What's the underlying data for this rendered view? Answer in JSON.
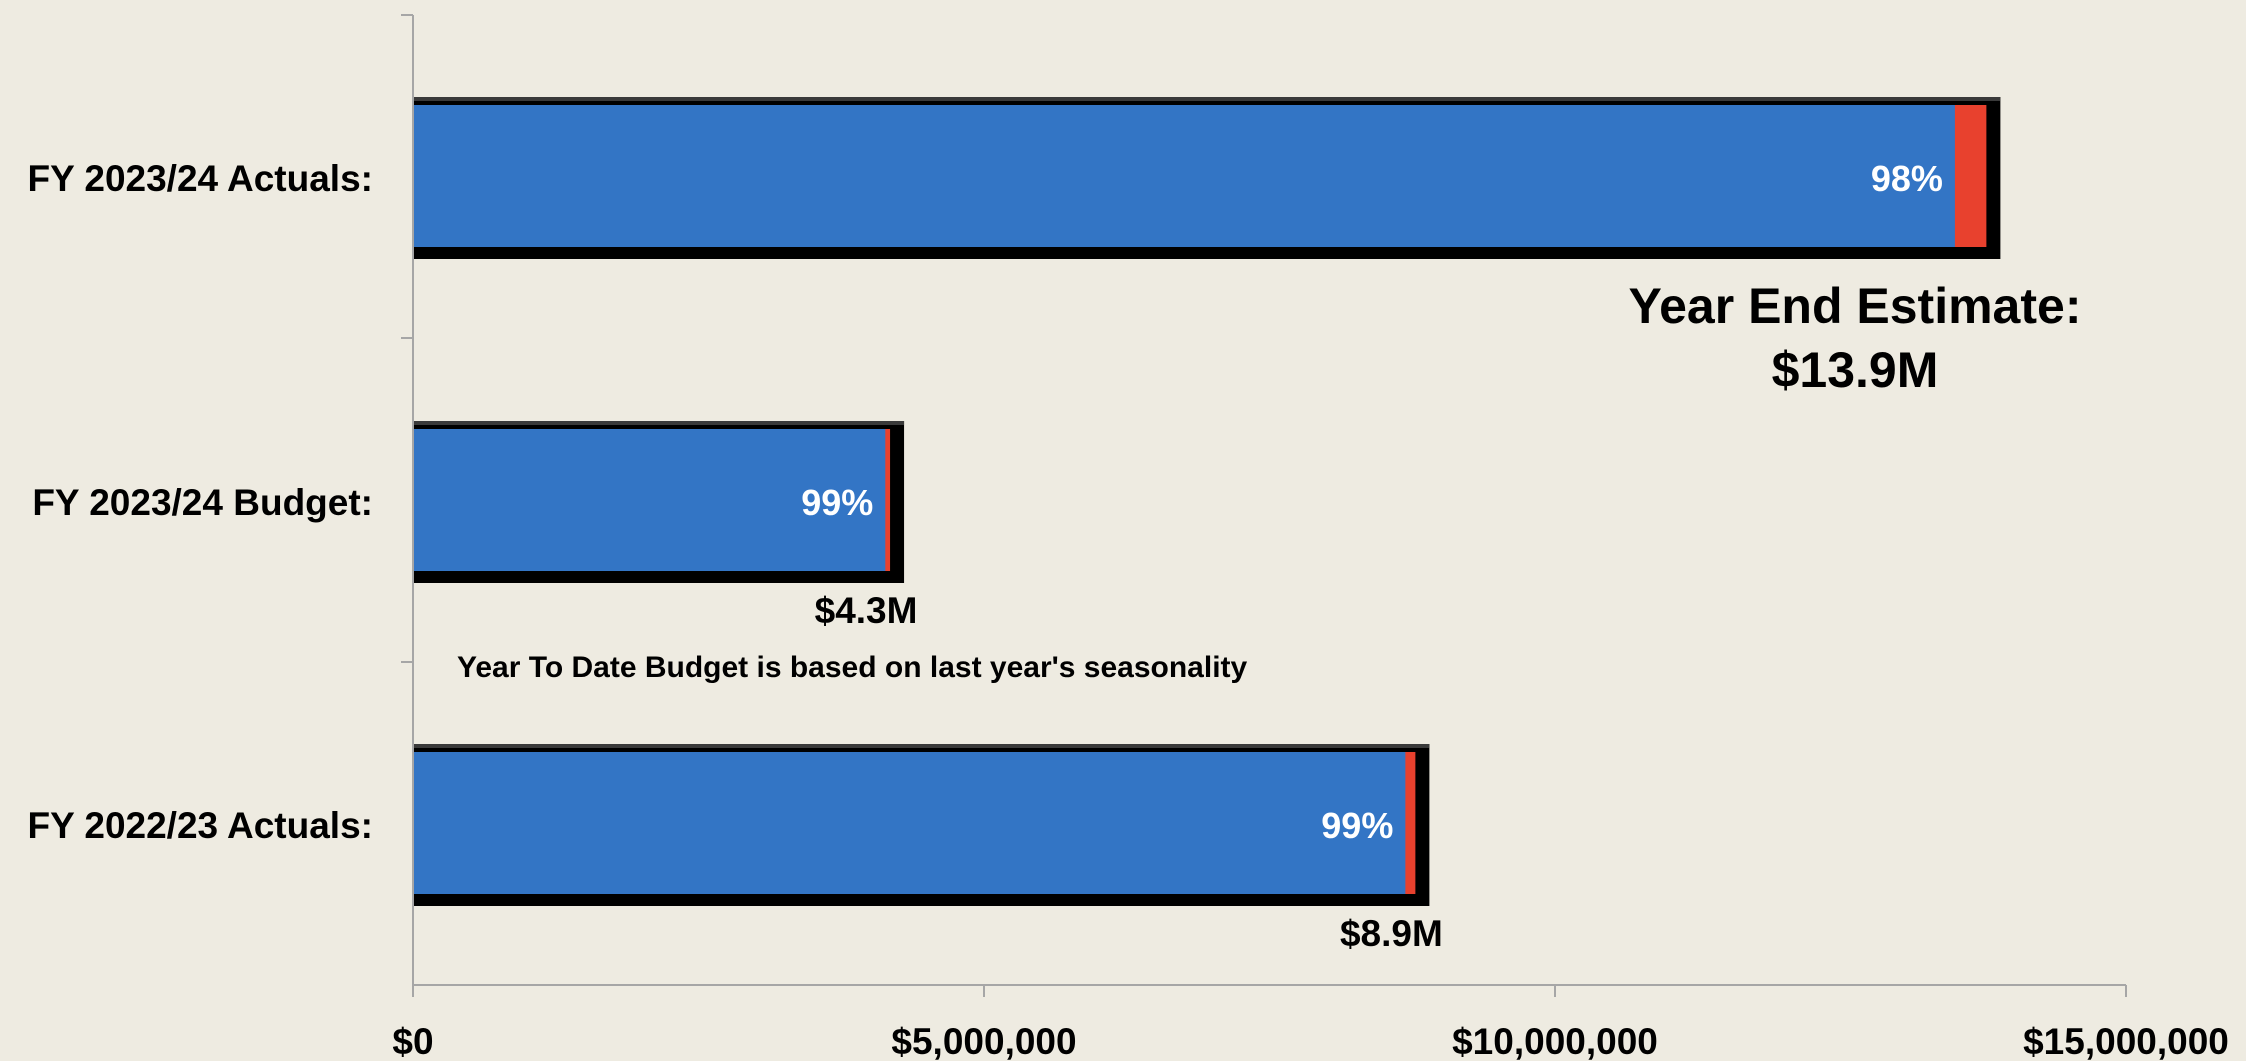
{
  "chart_data": {
    "type": "bar",
    "orientation": "horizontal",
    "xlim": [
      0,
      15000000
    ],
    "xticks": [
      0,
      5000000,
      10000000,
      15000000
    ],
    "tick_labels": [
      "$0",
      "$5,000,000",
      "$10,000,000",
      "$15,000,000"
    ],
    "categories": [
      "FY 2023/24 Actuals:",
      "FY 2023/24 Budget:",
      "FY 2022/23 Actuals:"
    ],
    "totals": [
      13900000,
      4300000,
      8900000
    ],
    "percent_labels": [
      "98%",
      "99%",
      "99%"
    ],
    "total_labels": [
      "",
      "$4.3M",
      "$8.9M"
    ],
    "annotations": {
      "year_end_line1": "Year End Estimate:",
      "year_end_line2": "$13.9M",
      "note": "Year To Date Budget is based on last year's seasonality"
    },
    "colors": {
      "bar_fill": "#3375C5",
      "remainder_fill": "#E8412E",
      "frame": "#000000",
      "axis": "#A6A6A6",
      "background": "#EEEBE1"
    },
    "grid": false,
    "legend": "none"
  }
}
